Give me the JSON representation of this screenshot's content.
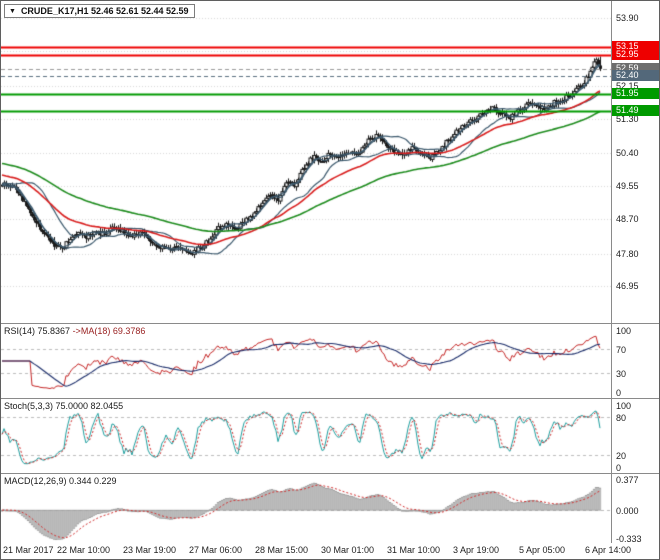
{
  "header": {
    "title": "CRUDE_K17,H1 52.46 52.61 52.44 52.59",
    "dropdown_icon": "▼"
  },
  "colors": {
    "bg": "#ffffff",
    "grid": "#d9d9d9",
    "candle": "#1a1a1a",
    "band": "#3d5a6e",
    "ma_red": "#d91e1e",
    "ma_green": "#1e8c1e",
    "guide": "#bdbdbd",
    "rsi_line": "#c62828",
    "rsi_ma": "#1c2e6b",
    "stoch_main": "#1fa0a0",
    "stoch_signal": "#d23030",
    "macd_bar_fill": "#e3e3e3",
    "macd_bar_edge": "#8f8f8f",
    "macd_signal": "#d23030"
  },
  "chart_data": {
    "type": "candlestick",
    "symbol": "CRUDE_K17",
    "timeframe": "H1",
    "title": "CRUDE_K17,H1",
    "ohlc_display": {
      "open": "52.46",
      "high": "52.61",
      "low": "52.44",
      "close": "52.59"
    },
    "bars": 300,
    "last_close": 52.59,
    "price_range": [
      46.0,
      54.35
    ],
    "axis_ticks": [
      "53.90",
      "52.15",
      "51.30",
      "50.40",
      "49.55",
      "48.70",
      "47.80",
      "46.95"
    ],
    "grid_ticks": [
      "53.90",
      "53.05",
      "52.15",
      "51.30",
      "50.40",
      "49.55",
      "48.70",
      "47.80",
      "46.95"
    ],
    "price_path": [
      [
        0,
        49.62
      ],
      [
        0.012,
        49.55
      ],
      [
        0.025,
        49.45
      ],
      [
        0.04,
        49.05
      ],
      [
        0.055,
        48.65
      ],
      [
        0.07,
        48.35
      ],
      [
        0.085,
        48.05
      ],
      [
        0.1,
        47.95
      ],
      [
        0.11,
        48.1
      ],
      [
        0.125,
        48.35
      ],
      [
        0.14,
        48.2
      ],
      [
        0.155,
        48.42
      ],
      [
        0.17,
        48.28
      ],
      [
        0.185,
        48.48
      ],
      [
        0.2,
        48.38
      ],
      [
        0.215,
        48.25
      ],
      [
        0.23,
        48.33
      ],
      [
        0.245,
        48.18
      ],
      [
        0.26,
        48.02
      ],
      [
        0.275,
        47.9
      ],
      [
        0.29,
        47.98
      ],
      [
        0.3,
        47.88
      ],
      [
        0.315,
        47.8
      ],
      [
        0.33,
        47.95
      ],
      [
        0.345,
        48.12
      ],
      [
        0.36,
        48.48
      ],
      [
        0.375,
        48.55
      ],
      [
        0.39,
        48.45
      ],
      [
        0.405,
        48.62
      ],
      [
        0.42,
        48.85
      ],
      [
        0.435,
        49.12
      ],
      [
        0.45,
        49.28
      ],
      [
        0.462,
        49.22
      ],
      [
        0.475,
        49.68
      ],
      [
        0.49,
        49.55
      ],
      [
        0.505,
        50.05
      ],
      [
        0.52,
        50.3
      ],
      [
        0.535,
        50.22
      ],
      [
        0.55,
        50.4
      ],
      [
        0.565,
        50.28
      ],
      [
        0.58,
        50.42
      ],
      [
        0.595,
        50.35
      ],
      [
        0.61,
        50.68
      ],
      [
        0.625,
        50.88
      ],
      [
        0.64,
        50.62
      ],
      [
        0.655,
        50.42
      ],
      [
        0.67,
        50.38
      ],
      [
        0.685,
        50.58
      ],
      [
        0.7,
        50.42
      ],
      [
        0.715,
        50.28
      ],
      [
        0.73,
        50.48
      ],
      [
        0.745,
        50.72
      ],
      [
        0.76,
        50.98
      ],
      [
        0.775,
        51.18
      ],
      [
        0.79,
        51.28
      ],
      [
        0.805,
        51.45
      ],
      [
        0.82,
        51.58
      ],
      [
        0.835,
        51.42
      ],
      [
        0.85,
        51.32
      ],
      [
        0.862,
        51.48
      ],
      [
        0.875,
        51.62
      ],
      [
        0.888,
        51.72
      ],
      [
        0.9,
        51.55
      ],
      [
        0.912,
        51.62
      ],
      [
        0.925,
        51.72
      ],
      [
        0.94,
        51.82
      ],
      [
        0.955,
        52.0
      ],
      [
        0.97,
        52.18
      ],
      [
        0.982,
        52.48
      ],
      [
        0.992,
        52.8
      ],
      [
        1,
        52.59
      ]
    ],
    "levels": [
      {
        "price": "53.15",
        "color": "#ee0000",
        "lw": 2,
        "line": "solid",
        "badge": true
      },
      {
        "price": "52.95",
        "color": "#ee0000",
        "lw": 2,
        "line": "solid",
        "badge": true
      },
      {
        "price": "52.59",
        "color": "#9a9a9a",
        "lw": 1,
        "line": "dash",
        "badge": true,
        "badge_color": "#6e6e6e"
      },
      {
        "price": "52.40",
        "color": "#5a7080",
        "lw": 1,
        "line": "dash",
        "badge": true,
        "badge_color": "#53687a"
      },
      {
        "price": "51.95",
        "color": "#009a00",
        "lw": 2,
        "line": "solid",
        "badge": true
      },
      {
        "price": "51.49",
        "color": "#009a00",
        "lw": 2,
        "line": "solid",
        "badge": true
      }
    ],
    "x_labels": [
      "21 Mar 2017",
      "22 Mar 10:00",
      "23 Mar 19:00",
      "27 Mar 06:00",
      "28 Mar 15:00",
      "30 Mar 01:00",
      "31 Mar 10:00",
      "3 Apr 19:00",
      "5 Apr 05:00",
      "6 Apr 14:00"
    ],
    "moving_averages": {
      "band_period": 16,
      "band_dev": 1.15,
      "weave_period": 5,
      "red_period": 40,
      "red_seed": 49.85,
      "green_period": 95,
      "green_seed": 50.15
    },
    "indicators": {
      "rsi": {
        "name": "RSI(14) 75.8367",
        "ma_label": "->MA(18) 69.3786",
        "period": 14,
        "ma_period": 18,
        "value": 75.8367,
        "ma_value": 69.3786,
        "ticks": [
          "100",
          "70",
          "30",
          "0"
        ],
        "guides": [
          70,
          30
        ],
        "range": [
          0,
          100
        ]
      },
      "stoch": {
        "label": "Stoch(5,3,3) 75.0000 82.0455",
        "k_period": 5,
        "d_period": 3,
        "slowing": 3,
        "value_k": 75.0,
        "value_d": 82.0455,
        "ticks": [
          "100",
          "80",
          "20",
          "0"
        ],
        "guides": [
          80,
          20
        ],
        "range": [
          0,
          100
        ]
      },
      "macd": {
        "label": "MACD(12,26,9) 0.344 0.229",
        "fast": 12,
        "slow": 26,
        "signal": 9,
        "value": 0.344,
        "value_signal": 0.229,
        "ticks": [
          "0.377",
          "0.000",
          "-0.333"
        ],
        "range": [
          -0.36,
          0.4
        ]
      }
    }
  }
}
